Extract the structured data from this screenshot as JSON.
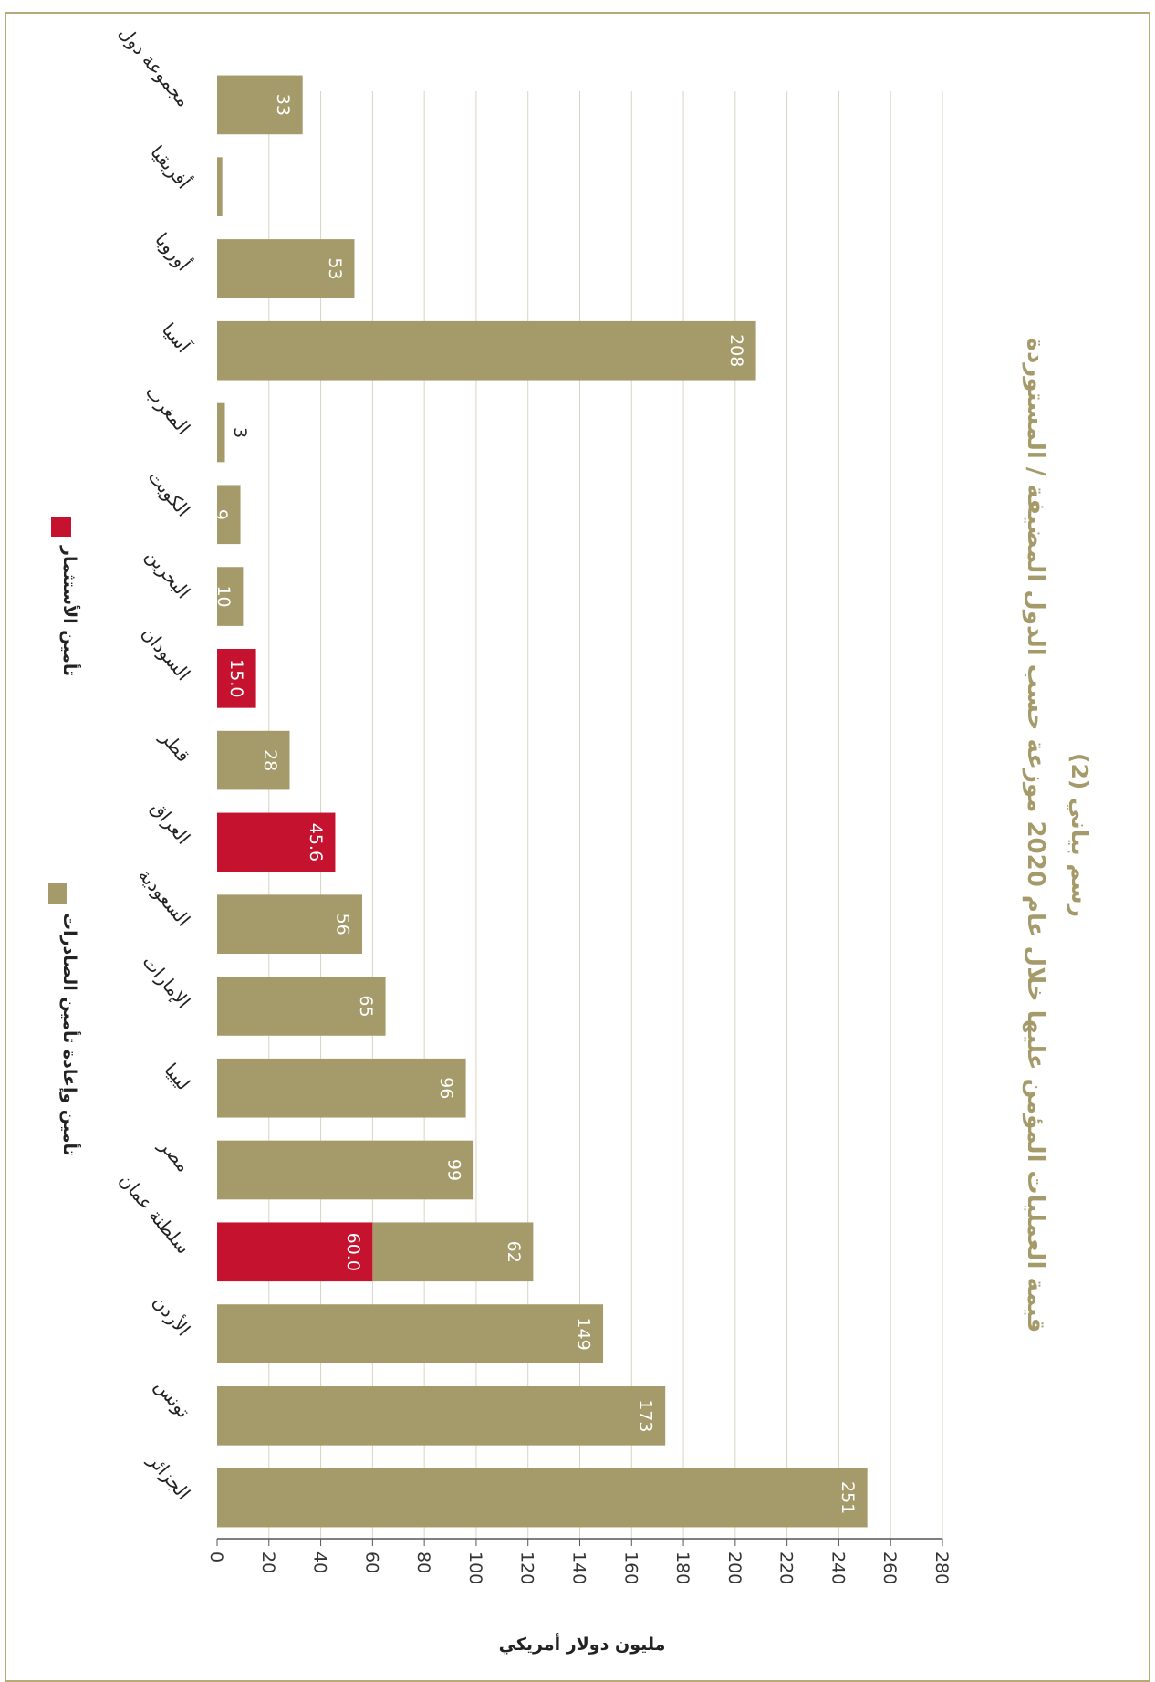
{
  "chart_data": {
    "type": "bar",
    "orientation": "horizontal-stacked",
    "title": "رسم بياني (2)",
    "subtitle": "قيمة العمليات المؤمن عليها خلال عام 2020 موزعة حسب الدول المضيفة / المستوردة",
    "xlabel": "مليون دولار أمريكي",
    "xlim": [
      0,
      280
    ],
    "xticks": [
      0,
      20,
      40,
      60,
      80,
      100,
      120,
      140,
      160,
      180,
      200,
      220,
      240,
      260,
      280
    ],
    "grid": true,
    "legend_position": "bottom",
    "categories": [
      "الجزائر",
      "تونس",
      "الأردن",
      "سلطنة عمان",
      "مصر",
      "ليبيا",
      "الإمارات",
      "السعودية",
      "العراق",
      "قطر",
      "السودان",
      "البحرين",
      "الكويت",
      "المغرب",
      "آسيا",
      "أوروبا",
      "أفريقيا",
      "مجموعة دول"
    ],
    "series": [
      {
        "name": "تأمين الأستثمار",
        "color": "#c4122f",
        "values": [
          0,
          0,
          0,
          60.0,
          0,
          0,
          0,
          0,
          45.6,
          0,
          15.0,
          0,
          0,
          0,
          0,
          0,
          0,
          0
        ],
        "labels": [
          "",
          "",
          "",
          "60.0",
          "",
          "",
          "",
          "",
          "45.6",
          "",
          "15.0",
          "",
          "",
          "",
          "",
          "",
          "",
          ""
        ]
      },
      {
        "name": "تأمين وإعادة تأمين الصادرات",
        "color": "#a59a6a",
        "values": [
          251,
          173,
          149,
          62,
          99,
          96,
          65,
          56,
          0,
          28,
          0,
          10,
          9,
          3,
          208,
          53,
          2,
          33
        ],
        "labels": [
          "251",
          "173",
          "149",
          "62",
          "99",
          "96",
          "65",
          "56",
          "",
          "28",
          "",
          "10",
          "9",
          "3",
          "208",
          "53",
          "",
          "33"
        ]
      }
    ]
  }
}
